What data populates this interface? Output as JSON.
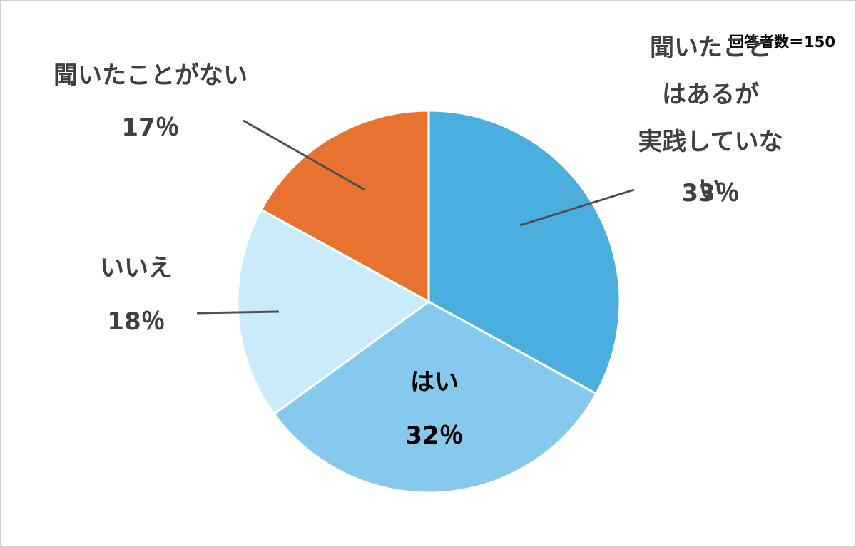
{
  "chart_data": {
    "type": "pie",
    "annotation": "回答者数＝150",
    "categories": [
      "聞いたことはあるが\n実践していない",
      "はい",
      "いいえ",
      "聞いたことがない"
    ],
    "values": [
      33,
      32,
      18,
      17
    ],
    "value_labels": [
      "33％",
      "32％",
      "18％",
      "17％"
    ],
    "colors": [
      "#4AAEDF",
      "#85C9EC",
      "#C9EBFA",
      "#E87330"
    ]
  }
}
